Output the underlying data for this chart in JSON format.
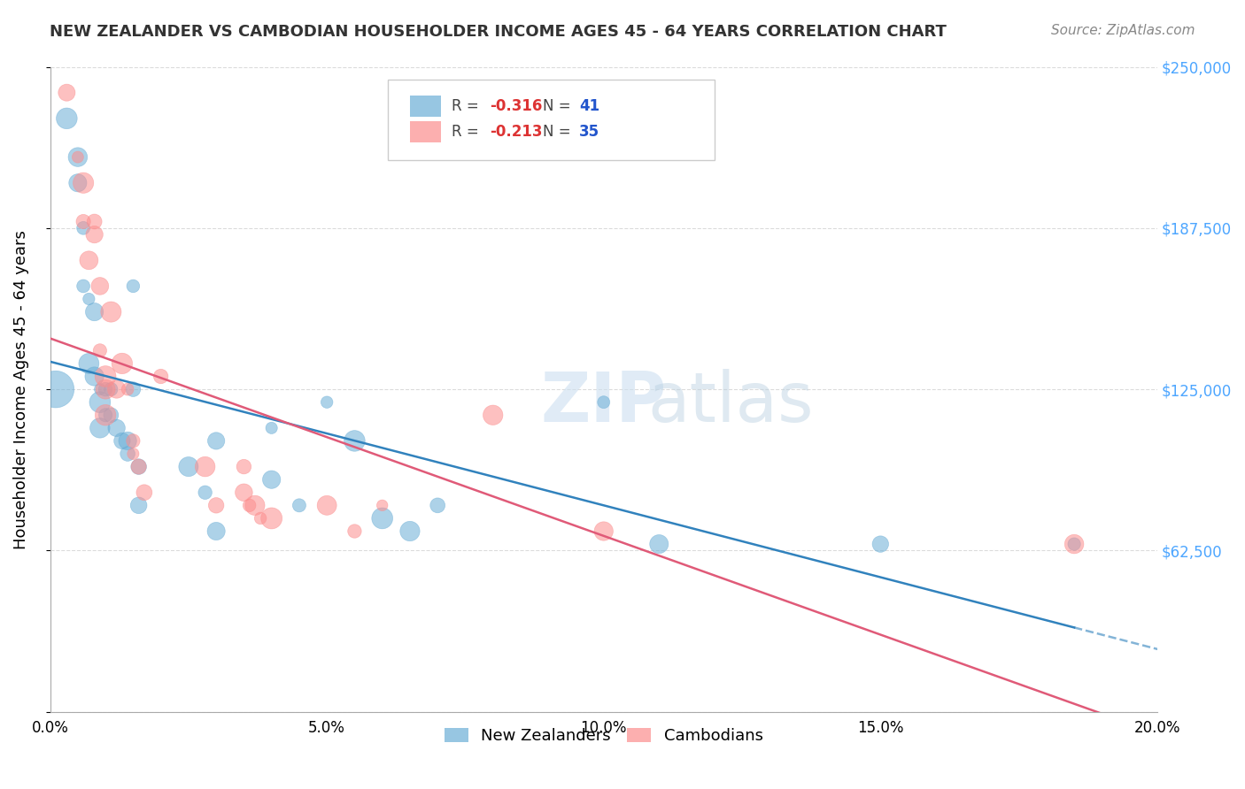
{
  "title": "NEW ZEALANDER VS CAMBODIAN HOUSEHOLDER INCOME AGES 45 - 64 YEARS CORRELATION CHART",
  "source": "Source: ZipAtlas.com",
  "xlabel": "",
  "ylabel": "Householder Income Ages 45 - 64 years",
  "xlim": [
    0.0,
    0.2
  ],
  "ylim": [
    0,
    250000
  ],
  "yticks": [
    0,
    62500,
    125000,
    187500,
    250000
  ],
  "ytick_labels": [
    "",
    "$62,500",
    "$125,000",
    "$187,500",
    "$250,000"
  ],
  "xticks": [
    0.0,
    0.05,
    0.1,
    0.15,
    0.2
  ],
  "xtick_labels": [
    "0.0%",
    "5.0%",
    "10.0%",
    "15.0%",
    "20.0%"
  ],
  "nz_R": -0.316,
  "nz_N": 41,
  "cam_R": -0.213,
  "cam_N": 35,
  "nz_color": "#6baed6",
  "cam_color": "#fc8d8d",
  "nz_line_color": "#3182bd",
  "cam_line_color": "#e05a78",
  "background_color": "#ffffff",
  "grid_color": "#cccccc",
  "nz_x": [
    0.001,
    0.003,
    0.005,
    0.005,
    0.006,
    0.006,
    0.007,
    0.007,
    0.008,
    0.008,
    0.009,
    0.009,
    0.009,
    0.01,
    0.01,
    0.011,
    0.011,
    0.012,
    0.013,
    0.014,
    0.014,
    0.015,
    0.015,
    0.016,
    0.016,
    0.025,
    0.028,
    0.03,
    0.03,
    0.04,
    0.04,
    0.045,
    0.05,
    0.055,
    0.06,
    0.065,
    0.07,
    0.1,
    0.11,
    0.15,
    0.185
  ],
  "nz_y": [
    125000,
    230000,
    215000,
    205000,
    187500,
    165000,
    160000,
    135000,
    155000,
    130000,
    125000,
    120000,
    110000,
    125000,
    115000,
    125000,
    115000,
    110000,
    105000,
    100000,
    105000,
    165000,
    125000,
    95000,
    80000,
    95000,
    85000,
    105000,
    70000,
    110000,
    90000,
    80000,
    120000,
    105000,
    75000,
    70000,
    80000,
    120000,
    65000,
    65000,
    65000
  ],
  "cam_x": [
    0.003,
    0.005,
    0.006,
    0.006,
    0.007,
    0.008,
    0.008,
    0.009,
    0.009,
    0.01,
    0.01,
    0.01,
    0.011,
    0.012,
    0.013,
    0.014,
    0.015,
    0.015,
    0.016,
    0.017,
    0.02,
    0.028,
    0.03,
    0.035,
    0.035,
    0.036,
    0.037,
    0.038,
    0.04,
    0.05,
    0.055,
    0.06,
    0.08,
    0.1,
    0.185
  ],
  "cam_y": [
    240000,
    215000,
    205000,
    190000,
    175000,
    190000,
    185000,
    165000,
    140000,
    130000,
    125000,
    115000,
    155000,
    125000,
    135000,
    125000,
    105000,
    100000,
    95000,
    85000,
    130000,
    95000,
    80000,
    95000,
    85000,
    80000,
    80000,
    75000,
    75000,
    80000,
    70000,
    80000,
    115000,
    70000,
    65000
  ]
}
